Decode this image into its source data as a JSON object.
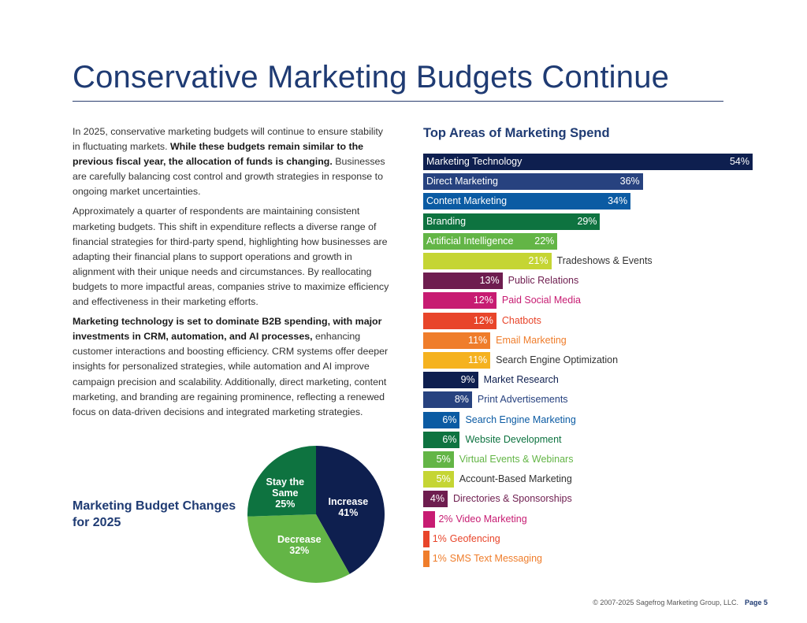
{
  "header": {
    "title": "Conservative Marketing Budgets Continue"
  },
  "paragraphs": [
    {
      "p1_a": "In 2025, conservative marketing budgets will continue to ensure stability in fluctuating markets. ",
      "p1_b": "While these budgets remain similar to the previous fiscal year, the allocation of funds is changing.",
      "p1_c": " Businesses are carefully balancing cost control and growth strategies in response to ongoing market uncertainties."
    },
    {
      "p2": "Approximately a quarter of respondents are maintaining consistent marketing budgets. This shift in expenditure reflects a diverse range of financial strategies for third-party spend, highlighting how businesses are adapting their financial plans to support operations and growth in alignment with their unique needs and circumstances. By reallocating budgets to more impactful areas, companies strive to maximize efficiency and effectiveness in their marketing efforts."
    },
    {
      "p3_a": "Marketing technology is set to dominate B2B spending, with major investments in CRM, automation, and AI processes,",
      "p3_b": " enhancing customer interactions and boosting efficiency. CRM systems offer deeper insights for personalized strategies, while automation and AI improve campaign precision and scalability. Additionally, direct marketing, content marketing, and branding are regaining prominence, reflecting a renewed focus on data-driven decisions and integrated marketing strategies."
    }
  ],
  "chart_data": [
    {
      "type": "bar",
      "orientation": "horizontal",
      "title": "Top Areas of Marketing Spend",
      "unit": "%",
      "categories": [
        "Marketing Technology",
        "Direct Marketing",
        "Content Marketing",
        "Branding",
        "Artificial Intelligence",
        "Tradeshows & Events",
        "Public Relations",
        "Paid Social Media",
        "Chatbots",
        "Email Marketing",
        "Search Engine Optimization",
        "Market Research",
        "Print Advertisements",
        "Search Engine Marketing",
        "Website Development",
        "Virtual Events & Webinars",
        "Account-Based Marketing",
        "Directories & Sponsorships",
        "Video Marketing",
        "Geofencing",
        "SMS Text Messaging"
      ],
      "values": [
        54,
        36,
        34,
        29,
        22,
        21,
        13,
        12,
        12,
        11,
        11,
        9,
        8,
        6,
        6,
        5,
        5,
        4,
        2,
        1,
        1
      ],
      "labels": [
        "54%",
        "36%",
        "34%",
        "29%",
        "22%",
        "21%",
        "13%",
        "12%",
        "12%",
        "11%",
        "11%",
        "9%",
        "8%",
        "6%",
        "6%",
        "5%",
        "5%",
        "4%",
        "2%",
        "1%",
        "1%"
      ],
      "colors": [
        "#0e1f4f",
        "#27427f",
        "#0b5ba3",
        "#0e7340",
        "#63b546",
        "#c5d534",
        "#6e1d4f",
        "#c71c72",
        "#e8452a",
        "#ef7d2b",
        "#f5b21f",
        "#0e1f4f",
        "#27427f",
        "#0b5ba3",
        "#0e7340",
        "#63b546",
        "#c5d534",
        "#6e1d4f",
        "#c71c72",
        "#e8452a",
        "#ef7d2b"
      ],
      "label_colors": [
        "#0e1f4f",
        "#27427f",
        "#0b5ba3",
        "#0e7340",
        "#63b546",
        "#333333",
        "#6e1d4f",
        "#c71c72",
        "#e8452a",
        "#ef7d2b",
        "#333333",
        "#0e1f4f",
        "#27427f",
        "#0b5ba3",
        "#0e7340",
        "#63b546",
        "#333333",
        "#6e1d4f",
        "#c71c72",
        "#e8452a",
        "#ef7d2b"
      ]
    },
    {
      "type": "pie",
      "title": "Marketing Budget Changes for 2025",
      "slices": [
        {
          "name": "Increase",
          "value": 41,
          "label": "41%",
          "color": "#0e1f4f"
        },
        {
          "name": "Decrease",
          "value": 32,
          "label": "32%",
          "color": "#63b546"
        },
        {
          "name": "Stay the Same",
          "value": 25,
          "label": "25%",
          "color": "#0e7340"
        }
      ]
    }
  ],
  "pie_title": "Marketing Budget Changes for 2025",
  "footer": {
    "copyright": "© 2007-2025 Sagefrog Marketing Group, LLC.",
    "page": "Page 5"
  }
}
